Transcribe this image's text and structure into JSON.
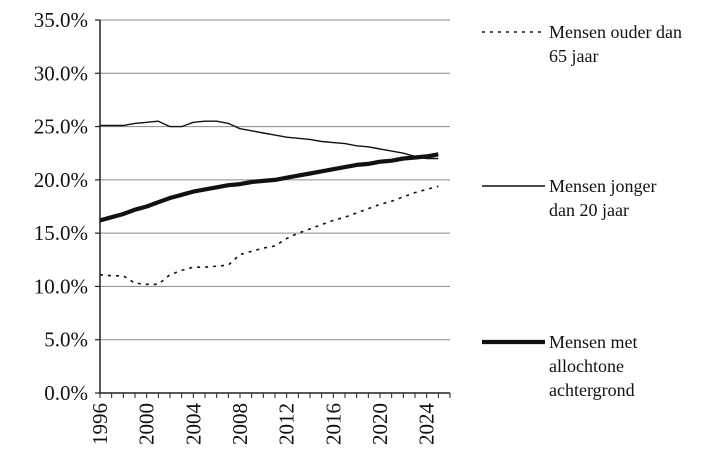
{
  "chart_data": {
    "type": "line",
    "title": "",
    "xlabel": "",
    "ylabel": "",
    "xlim": [
      1996,
      2026
    ],
    "ylim": [
      0,
      35
    ],
    "y_ticks": [
      0,
      5,
      10,
      15,
      20,
      25,
      30,
      35
    ],
    "y_tick_labels": [
      "0.0%",
      "5.0%",
      "10.0%",
      "15.0%",
      "20.0%",
      "25.0%",
      "30.0%",
      "35.0%"
    ],
    "x_ticks": [
      1996,
      2000,
      2004,
      2008,
      2012,
      2016,
      2020,
      2024
    ],
    "x_tick_labels": [
      "1996",
      "2000",
      "2004",
      "2008",
      "2012",
      "2016",
      "2020",
      "2024"
    ],
    "grid": "horizontal",
    "legend_position": "right",
    "x": [
      1996,
      1997,
      1998,
      1999,
      2000,
      2001,
      2002,
      2003,
      2004,
      2005,
      2006,
      2007,
      2008,
      2009,
      2010,
      2011,
      2012,
      2013,
      2014,
      2015,
      2016,
      2017,
      2018,
      2019,
      2020,
      2021,
      2022,
      2023,
      2024,
      2025
    ],
    "series": [
      {
        "name": "Mensen ouder dan 65 jaar",
        "legend_lines": [
          "Mensen ouder dan",
          "65 jaar"
        ],
        "style": "dotted",
        "values": [
          11.1,
          11.0,
          11.0,
          10.3,
          10.2,
          10.2,
          11.1,
          11.5,
          11.8,
          11.8,
          11.9,
          12.0,
          13.0,
          13.3,
          13.6,
          13.8,
          14.5,
          15.0,
          15.4,
          15.8,
          16.2,
          16.5,
          16.9,
          17.3,
          17.7,
          18.0,
          18.4,
          18.8,
          19.1,
          19.4
        ]
      },
      {
        "name": "Mensen jonger dan 20 jaar",
        "legend_lines": [
          "Mensen jonger",
          "dan 20 jaar"
        ],
        "style": "thin",
        "values": [
          25.1,
          25.1,
          25.1,
          25.3,
          25.4,
          25.5,
          25.0,
          25.0,
          25.4,
          25.5,
          25.5,
          25.3,
          24.8,
          24.6,
          24.4,
          24.2,
          24.0,
          23.9,
          23.8,
          23.6,
          23.5,
          23.4,
          23.2,
          23.1,
          22.9,
          22.7,
          22.5,
          22.2,
          22.0,
          22.0
        ]
      },
      {
        "name": "Mensen met allochtone achtergrond",
        "legend_lines": [
          "Mensen met",
          "allochtone",
          "achtergrond"
        ],
        "style": "thick",
        "values": [
          16.2,
          16.5,
          16.8,
          17.2,
          17.5,
          17.9,
          18.3,
          18.6,
          18.9,
          19.1,
          19.3,
          19.5,
          19.6,
          19.8,
          19.9,
          20.0,
          20.2,
          20.4,
          20.6,
          20.8,
          21.0,
          21.2,
          21.4,
          21.5,
          21.7,
          21.8,
          22.0,
          22.1,
          22.2,
          22.4
        ]
      }
    ]
  }
}
